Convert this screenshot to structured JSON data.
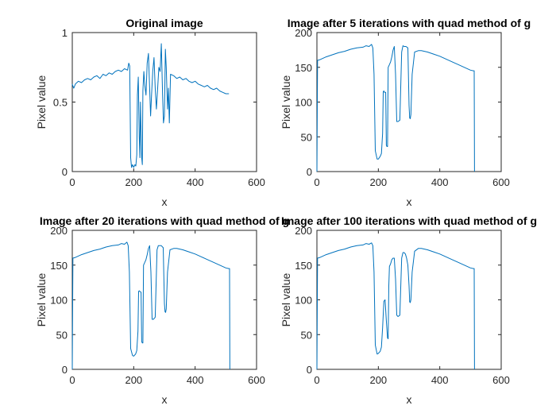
{
  "figure": {
    "background": "#ffffff",
    "line_color": "#0072bd",
    "axes_color": "#262626"
  },
  "chart_data": [
    {
      "type": "line",
      "title": "Original image",
      "xlabel": "x",
      "ylabel": "Pixel value",
      "xlim": [
        0,
        600
      ],
      "ylim": [
        0,
        1
      ],
      "xticks": [
        "0",
        "200",
        "400",
        "600"
      ],
      "yticks": [
        "0",
        "0.5",
        "1"
      ],
      "grid": false,
      "series": [
        {
          "x": [
            0,
            1,
            5,
            10,
            20,
            30,
            40,
            50,
            60,
            70,
            80,
            90,
            100,
            110,
            120,
            130,
            140,
            150,
            160,
            170,
            180,
            184,
            187,
            190,
            193,
            196,
            200,
            204,
            207,
            210,
            212,
            215,
            218,
            220,
            222,
            224,
            226,
            228,
            230,
            233,
            236,
            240,
            244,
            248,
            252,
            255,
            258,
            262,
            266,
            270,
            274,
            278,
            282,
            286,
            290,
            294,
            297,
            300,
            303,
            306,
            310,
            313,
            316,
            320,
            330,
            340,
            350,
            360,
            370,
            380,
            390,
            400,
            410,
            420,
            430,
            440,
            450,
            460,
            470,
            480,
            490,
            500,
            510
          ],
          "y": [
            0.63,
            0.62,
            0.6,
            0.63,
            0.65,
            0.64,
            0.66,
            0.67,
            0.66,
            0.68,
            0.69,
            0.67,
            0.7,
            0.69,
            0.71,
            0.7,
            0.72,
            0.73,
            0.72,
            0.74,
            0.73,
            0.78,
            0.76,
            0.1,
            0.03,
            0.05,
            0.03,
            0.05,
            0.04,
            0.12,
            0.55,
            0.68,
            0.25,
            0.1,
            0.5,
            0.3,
            0.1,
            0.05,
            0.58,
            0.72,
            0.62,
            0.55,
            0.78,
            0.85,
            0.6,
            0.4,
            0.55,
            0.72,
            0.82,
            0.6,
            0.45,
            0.6,
            0.75,
            0.72,
            0.92,
            0.55,
            0.35,
            0.4,
            0.88,
            0.75,
            0.45,
            0.6,
            0.35,
            0.7,
            0.69,
            0.67,
            0.68,
            0.66,
            0.67,
            0.65,
            0.64,
            0.65,
            0.63,
            0.62,
            0.61,
            0.62,
            0.6,
            0.59,
            0.6,
            0.58,
            0.57,
            0.56,
            0.56
          ]
        }
      ]
    },
    {
      "type": "line",
      "title": "Image after 5 iterations with quad method of g",
      "xlabel": "x",
      "ylabel": "Pixel value",
      "xlim": [
        0,
        600
      ],
      "ylim": [
        0,
        200
      ],
      "xticks": [
        "0",
        "200",
        "400",
        "600"
      ],
      "yticks": [
        "0",
        "50",
        "100",
        "150",
        "200"
      ],
      "grid": false,
      "series": [
        {
          "x": [
            0,
            2,
            10,
            30,
            50,
            70,
            90,
            110,
            130,
            150,
            160,
            170,
            178,
            182,
            186,
            190,
            196,
            200,
            206,
            210,
            214,
            216,
            218,
            220,
            224,
            226,
            228,
            230,
            232,
            236,
            240,
            244,
            248,
            252,
            256,
            260,
            264,
            270,
            276,
            280,
            284,
            286,
            290,
            296,
            300,
            302,
            304,
            306,
            310,
            318,
            330,
            340,
            360,
            380,
            400,
            420,
            440,
            460,
            480,
            500,
            509,
            512,
            513
          ],
          "y": [
            0,
            160,
            161,
            165,
            168,
            171,
            173,
            176,
            178,
            179,
            181,
            180,
            183,
            178,
            140,
            30,
            18,
            18,
            22,
            26,
            55,
            115,
            116,
            114,
            114,
            38,
            36,
            36,
            150,
            154,
            158,
            165,
            175,
            180,
            140,
            72,
            72,
            74,
            172,
            181,
            180,
            180,
            180,
            178,
            95,
            77,
            76,
            82,
            140,
            172,
            174,
            174,
            172,
            169,
            166,
            162,
            158,
            154,
            150,
            146,
            145,
            145,
            0
          ]
        }
      ]
    },
    {
      "type": "line",
      "title": "Image after 20 iterations with quad method of g",
      "xlabel": "x",
      "ylabel": "Pixel value",
      "xlim": [
        0,
        600
      ],
      "ylim": [
        0,
        200
      ],
      "xticks": [
        "0",
        "200",
        "400",
        "600"
      ],
      "yticks": [
        "0",
        "50",
        "100",
        "150",
        "200"
      ],
      "grid": false,
      "series": [
        {
          "x": [
            0,
            2,
            10,
            30,
            50,
            70,
            90,
            110,
            130,
            150,
            160,
            170,
            178,
            182,
            186,
            190,
            196,
            200,
            206,
            210,
            214,
            216,
            218,
            220,
            224,
            226,
            228,
            230,
            232,
            236,
            240,
            244,
            248,
            252,
            256,
            260,
            264,
            270,
            276,
            280,
            284,
            286,
            290,
            296,
            300,
            302,
            304,
            306,
            310,
            318,
            330,
            340,
            360,
            380,
            400,
            420,
            440,
            460,
            480,
            500,
            509,
            512,
            513
          ],
          "y": [
            0,
            160,
            161,
            165,
            168,
            171,
            173,
            176,
            178,
            179,
            181,
            180,
            183,
            178,
            140,
            30,
            20,
            19,
            22,
            27,
            55,
            112,
            113,
            112,
            111,
            40,
            38,
            38,
            150,
            154,
            158,
            165,
            174,
            178,
            140,
            72,
            72,
            75,
            172,
            178,
            178,
            178,
            178,
            175,
            95,
            83,
            82,
            87,
            140,
            172,
            174,
            174,
            172,
            169,
            166,
            162,
            158,
            154,
            150,
            146,
            145,
            145,
            0
          ]
        }
      ]
    },
    {
      "type": "line",
      "title": "Image after 100 iterations with quad method of g",
      "xlabel": "x",
      "ylabel": "Pixel value",
      "xlim": [
        0,
        600
      ],
      "ylim": [
        0,
        200
      ],
      "xticks": [
        "0",
        "200",
        "400",
        "600"
      ],
      "yticks": [
        "0",
        "50",
        "100",
        "150",
        "200"
      ],
      "grid": false,
      "series": [
        {
          "x": [
            0,
            2,
            10,
            30,
            50,
            70,
            90,
            110,
            130,
            150,
            160,
            170,
            178,
            182,
            186,
            190,
            196,
            200,
            206,
            210,
            214,
            218,
            222,
            226,
            230,
            232,
            234,
            236,
            240,
            244,
            248,
            252,
            256,
            260,
            264,
            270,
            276,
            280,
            284,
            288,
            292,
            296,
            300,
            302,
            304,
            306,
            310,
            318,
            330,
            340,
            360,
            380,
            400,
            420,
            440,
            460,
            480,
            500,
            509,
            512,
            513
          ],
          "y": [
            0,
            160,
            161,
            165,
            168,
            171,
            173,
            176,
            178,
            179,
            181,
            180,
            182,
            178,
            140,
            35,
            22,
            23,
            26,
            32,
            60,
            98,
            100,
            70,
            45,
            44,
            120,
            148,
            152,
            158,
            160,
            160,
            130,
            78,
            76,
            78,
            160,
            168,
            168,
            166,
            160,
            150,
            120,
            97,
            96,
            100,
            140,
            170,
            174,
            174,
            172,
            169,
            166,
            162,
            158,
            154,
            150,
            146,
            145,
            145,
            0
          ]
        }
      ]
    }
  ]
}
